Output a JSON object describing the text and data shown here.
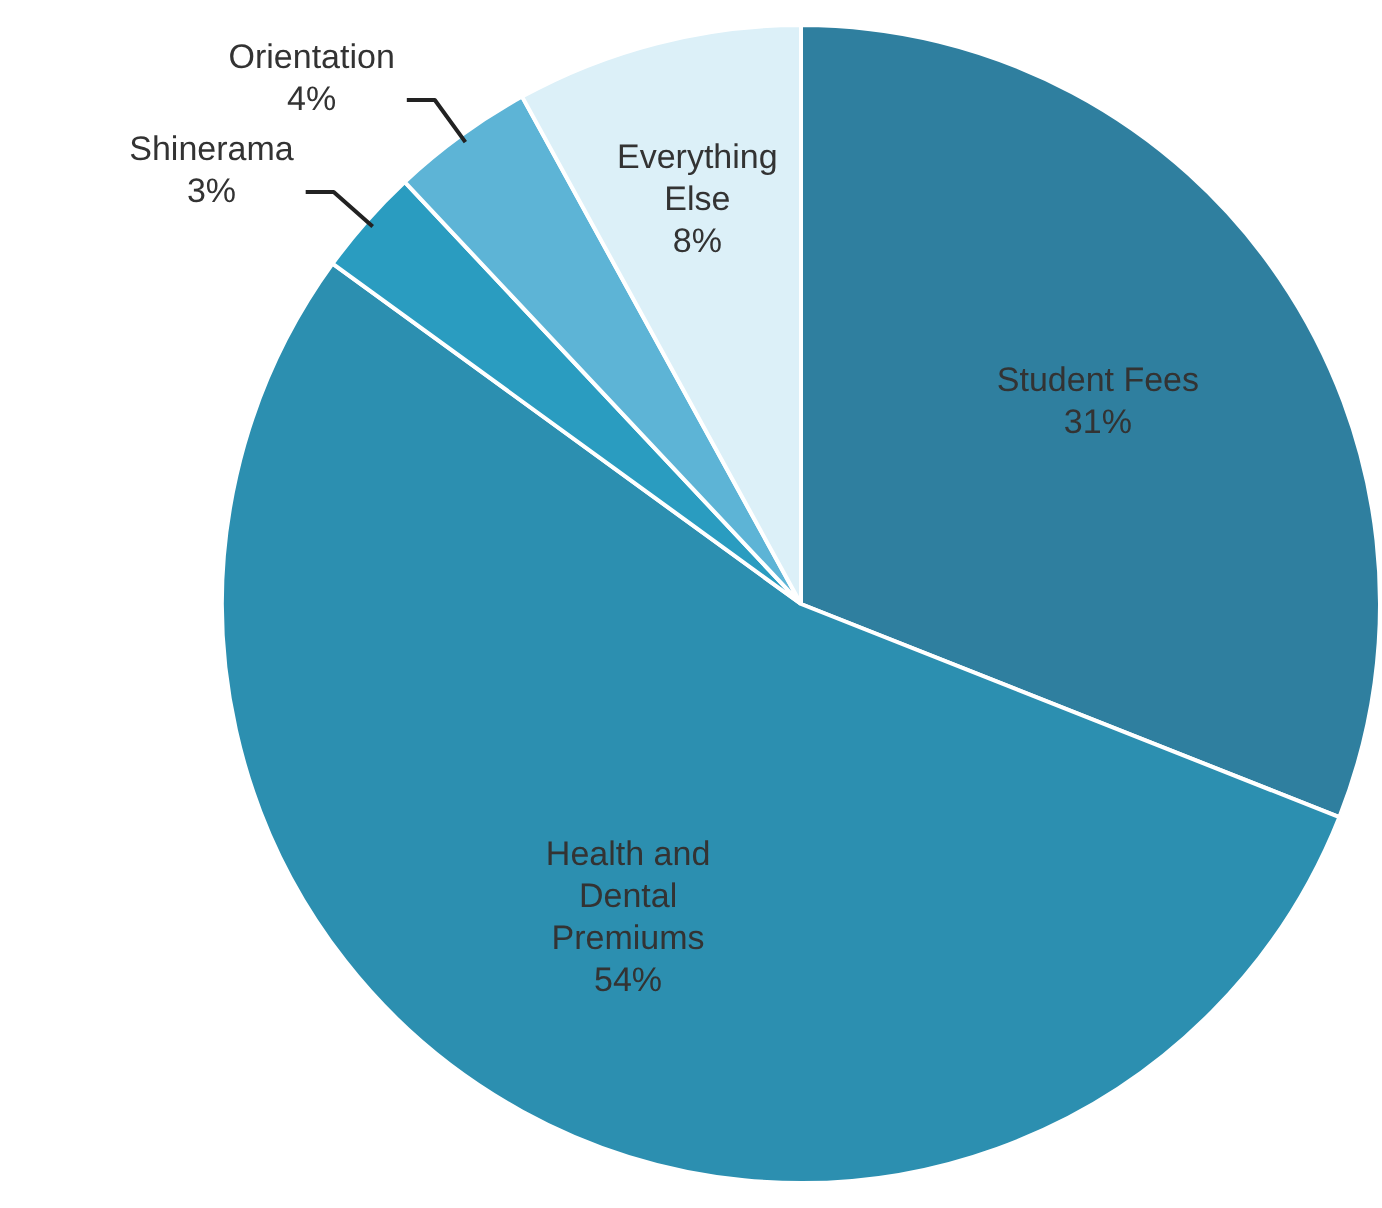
{
  "chart_data": {
    "type": "pie",
    "categories": [
      "Student Fees",
      "Health and Dental Premiums",
      "Shinerama",
      "Orientation",
      "Everything Else"
    ],
    "values": [
      31,
      54,
      3,
      4,
      8
    ],
    "value_labels": [
      "31%",
      "54%",
      "3%",
      "4%",
      "8%"
    ],
    "colors": [
      "#2f7f9f",
      "#2c8fb0",
      "#2a9cc0",
      "#5db4d6",
      "#dcf0f8"
    ],
    "legend": false
  }
}
